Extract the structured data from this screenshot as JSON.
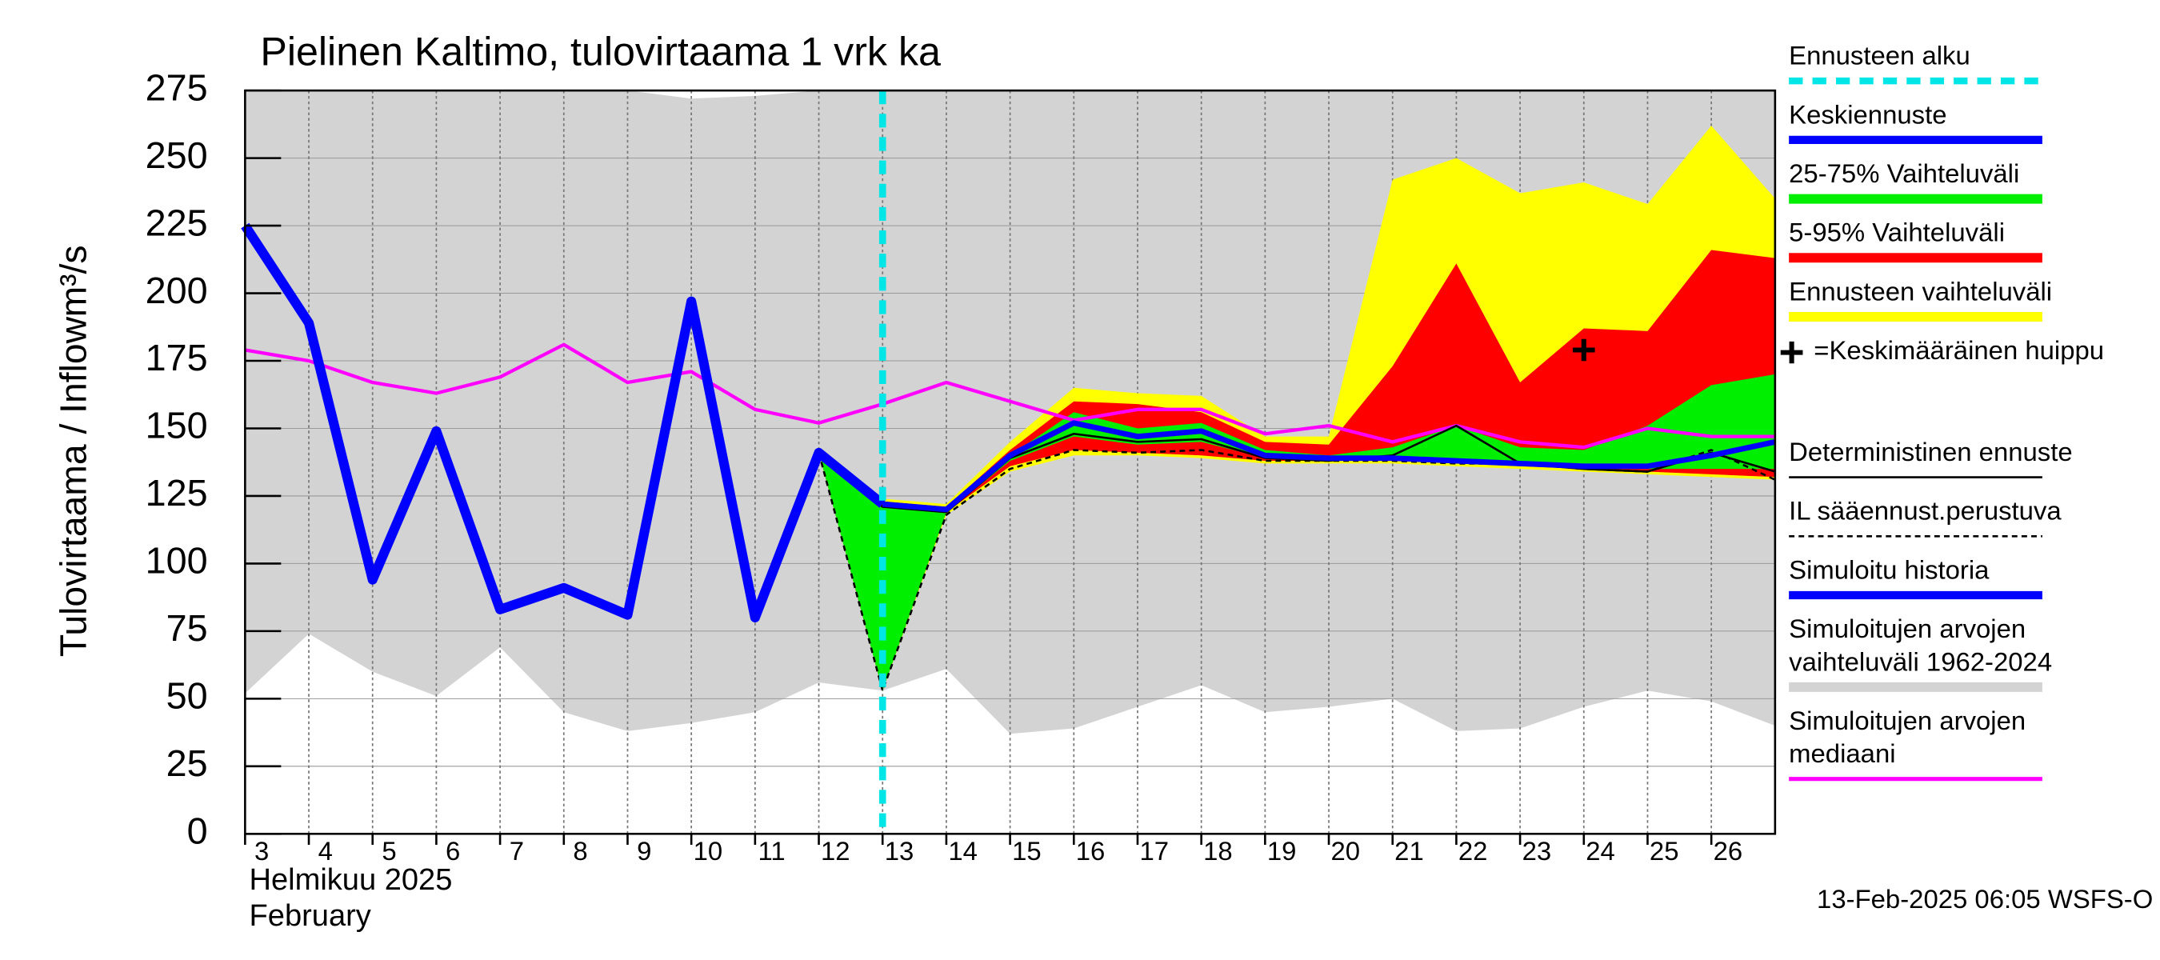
{
  "chart_data": {
    "type": "line",
    "title": "Pielinen Kaltimo, tulovirtaama 1 vrk ka",
    "ylabel": "Tulovirtaama / Inflow",
    "yunit": "m³/s",
    "xlabel_lines": [
      "Helmikuu  2025",
      "February"
    ],
    "footer": "13-Feb-2025 06:05 WSFS-O",
    "xlim": [
      3,
      27
    ],
    "xticks": [
      3,
      4,
      5,
      6,
      7,
      8,
      9,
      10,
      11,
      12,
      13,
      14,
      15,
      16,
      17,
      18,
      19,
      20,
      21,
      22,
      23,
      24,
      25,
      26
    ],
    "ylim": [
      0,
      275
    ],
    "yticks": [
      0,
      25,
      50,
      75,
      100,
      125,
      150,
      175,
      200,
      225,
      250,
      275
    ],
    "grid": true,
    "series": [
      {
        "name": [
          "Simuloitujen arvojen",
          "vaihteluväli 1962-2024"
        ],
        "kind": "band",
        "color": "#d3d3d3",
        "x": [
          3,
          4,
          5,
          6,
          7,
          8,
          9,
          10,
          11,
          12,
          13,
          14,
          15,
          16,
          17,
          18,
          19,
          20,
          21,
          22,
          23,
          24,
          25,
          26,
          27
        ],
        "upper": [
          275,
          275,
          275,
          275,
          275,
          275,
          275,
          272,
          273,
          275,
          275,
          275,
          275,
          275,
          275,
          275,
          275,
          275,
          275,
          275,
          275,
          275,
          275,
          275,
          275
        ],
        "lower": [
          52,
          74,
          60,
          51,
          69,
          45,
          38,
          41,
          45,
          56,
          53,
          61,
          37,
          39,
          47,
          55,
          45,
          47,
          50,
          38,
          39,
          47,
          53,
          49,
          40
        ]
      },
      {
        "name": [
          "Ennusteen vaihteluväli"
        ],
        "kind": "band",
        "color": "#ffff00",
        "x": [
          12,
          13,
          14,
          15,
          16,
          17,
          18,
          19,
          20,
          21,
          22,
          23,
          24,
          25,
          26,
          27
        ],
        "upper": [
          141,
          124,
          122,
          145,
          165,
          163,
          162,
          147,
          147,
          242,
          250,
          237,
          241,
          233,
          262,
          235
        ],
        "lower": [
          141,
          53,
          118,
          134,
          140,
          140,
          139,
          137,
          137,
          137,
          136,
          135,
          134,
          133,
          132,
          131
        ]
      },
      {
        "name": [
          "5-95% Vaihteluväli"
        ],
        "kind": "band",
        "color": "#ff0000",
        "x": [
          12,
          13,
          14,
          15,
          16,
          17,
          18,
          19,
          20,
          21,
          22,
          23,
          24,
          25,
          26,
          27
        ],
        "upper": [
          141,
          123,
          121,
          142,
          160,
          159,
          156,
          145,
          144,
          173,
          211,
          167,
          187,
          186,
          216,
          213
        ],
        "lower": [
          141,
          53,
          119,
          136,
          142,
          141,
          140,
          138,
          138,
          138,
          137,
          136,
          135,
          134,
          133,
          132
        ]
      },
      {
        "name": [
          "25-75% Vaihteluväli"
        ],
        "kind": "band",
        "color": "#00ee00",
        "x": [
          12,
          13,
          14,
          15,
          16,
          17,
          18,
          19,
          20,
          21,
          22,
          23,
          24,
          25,
          26,
          27
        ],
        "upper": [
          141,
          121,
          120,
          140,
          156,
          150,
          152,
          142,
          140,
          143,
          151,
          143,
          142,
          151,
          166,
          170
        ],
        "lower": [
          141,
          53,
          119,
          138,
          147,
          144,
          145,
          139,
          139,
          139,
          138,
          137,
          136,
          135,
          135,
          135
        ]
      },
      {
        "name": [
          "Simuloitujen arvojen",
          "mediaani"
        ],
        "kind": "line",
        "color": "#ff00ff",
        "width": 2.5,
        "x": [
          3,
          4,
          5,
          6,
          7,
          8,
          9,
          10,
          11,
          12,
          13,
          14,
          15,
          16,
          17,
          18,
          19,
          20,
          21,
          22,
          23,
          24,
          25,
          26,
          27
        ],
        "values": [
          179,
          175,
          167,
          163,
          169,
          181,
          167,
          171,
          157,
          152,
          159,
          167,
          160,
          153,
          157,
          157,
          148,
          151,
          145,
          151,
          145,
          143,
          150,
          147,
          147
        ]
      },
      {
        "name": [
          "IL sääennust.perustuva"
        ],
        "kind": "line",
        "color": "#000000",
        "width": 1.5,
        "dash": true,
        "x": [
          12,
          13,
          14,
          15,
          16,
          17,
          18,
          19,
          20,
          21,
          22,
          23,
          24,
          25,
          26,
          27
        ],
        "values": [
          141,
          53,
          118,
          135,
          142,
          141,
          142,
          138,
          138,
          138,
          137,
          137,
          135,
          134,
          142,
          131
        ]
      },
      {
        "name": [
          "Deterministinen ennuste"
        ],
        "kind": "line",
        "color": "#000000",
        "width": 1.5,
        "x": [
          12,
          13,
          14,
          15,
          16,
          17,
          18,
          19,
          20,
          21,
          22,
          23,
          24,
          25,
          26,
          27
        ],
        "values": [
          141,
          121,
          119,
          139,
          148,
          145,
          146,
          139,
          138,
          140,
          151,
          137,
          135,
          134,
          141,
          134
        ]
      },
      {
        "name": [
          "Simuloitu historia"
        ],
        "kind": "line",
        "color": "#0000ff",
        "width": 7,
        "x": [
          3,
          4,
          5,
          6,
          7,
          8,
          9,
          10,
          11,
          12,
          13
        ],
        "values": [
          225,
          189,
          94,
          149,
          83,
          91,
          81,
          197,
          80,
          141,
          122
        ]
      },
      {
        "name": [
          "Keskiennuste"
        ],
        "kind": "line",
        "color": "#0000ff",
        "width": 4,
        "x": [
          13,
          14,
          15,
          16,
          17,
          18,
          19,
          20,
          21,
          22,
          23,
          24,
          25,
          26,
          27
        ],
        "values": [
          122,
          120,
          140,
          152,
          147,
          149,
          140,
          139,
          139,
          138,
          137,
          136,
          136,
          140,
          145
        ]
      },
      {
        "name": [
          "=Keskimääräinen huippu"
        ],
        "kind": "marker",
        "color": "#000000",
        "x": [
          24
        ],
        "values": [
          179
        ]
      },
      {
        "name": [
          "Ennusteen alku"
        ],
        "kind": "vline",
        "color": "#00e5e5",
        "x": [
          13
        ]
      }
    ]
  }
}
